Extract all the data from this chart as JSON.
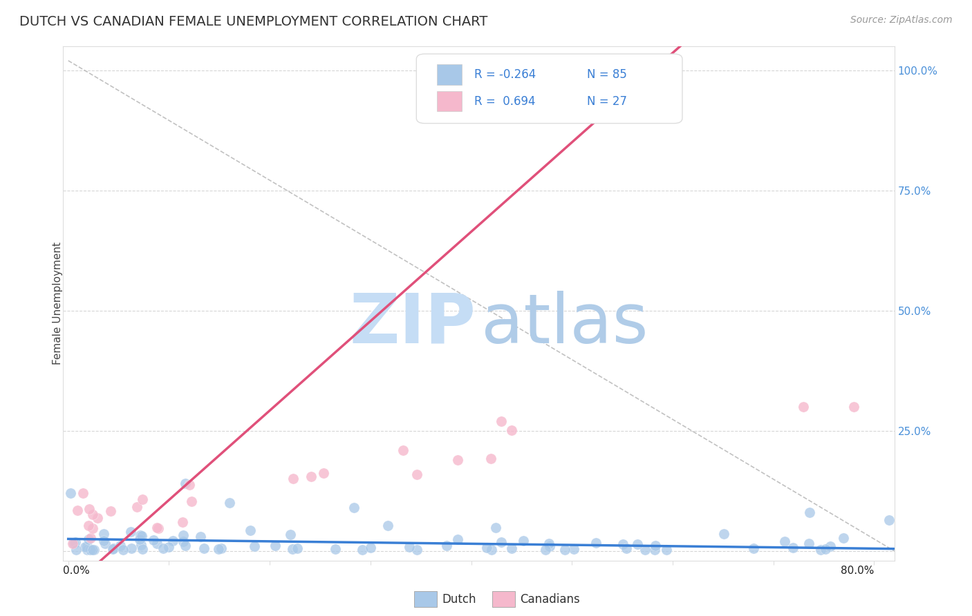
{
  "title": "DUTCH VS CANADIAN FEMALE UNEMPLOYMENT CORRELATION CHART",
  "source_text": "Source: ZipAtlas.com",
  "ylabel": "Female Unemployment",
  "xlim": [
    0.0,
    0.82
  ],
  "ylim": [
    -0.02,
    1.05
  ],
  "dutch_color": "#a8c8e8",
  "dutch_line_color": "#3a7fd5",
  "canadian_color": "#f5b8cc",
  "canadian_line_color": "#e0507a",
  "watermark_zip_color": "#c5ddf5",
  "watermark_atlas_color": "#b0cce8",
  "legend_text_color": "#3a7fd5",
  "background_color": "#ffffff",
  "grid_color": "#cccccc",
  "title_color": "#333333",
  "source_color": "#999999",
  "right_ytick_color": "#4a90d9",
  "diag_line_color": "#cccccc"
}
